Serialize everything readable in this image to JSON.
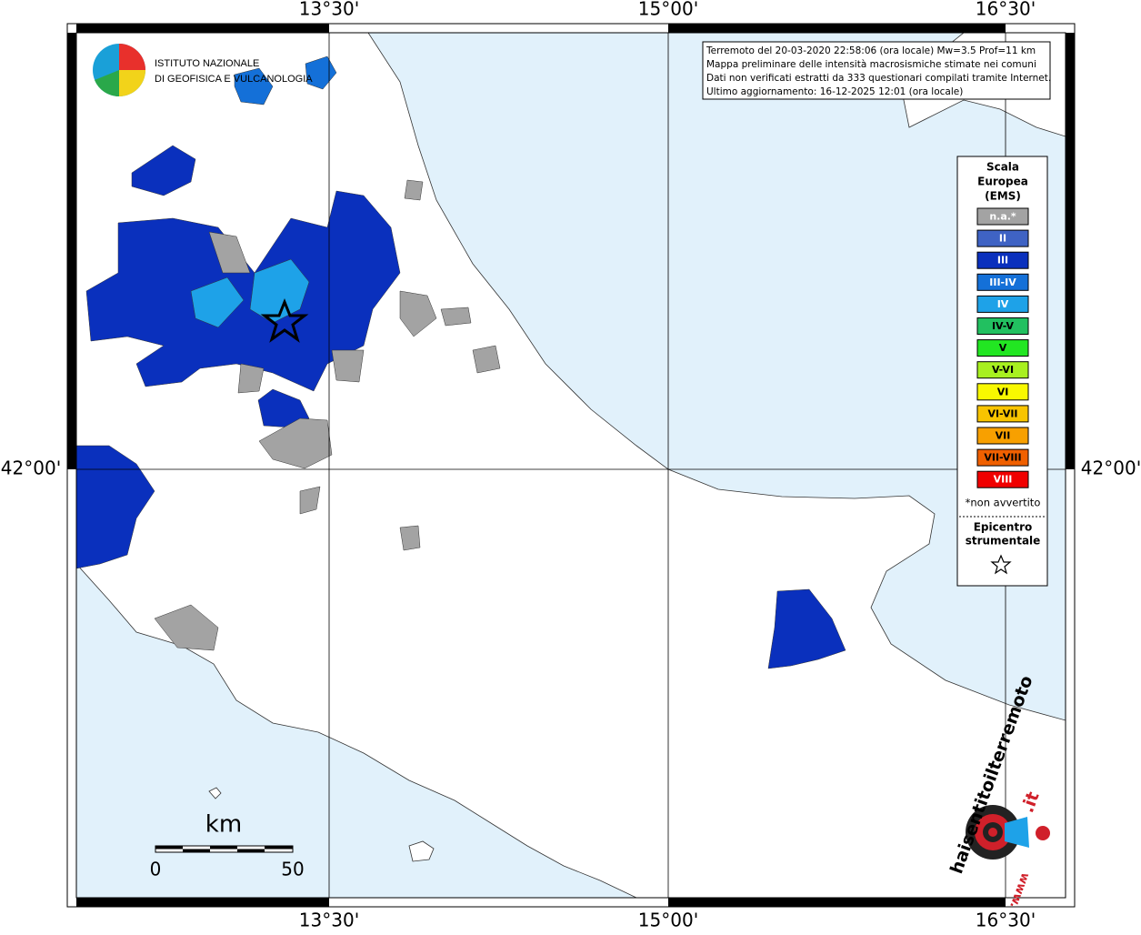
{
  "header": {
    "ingv_line1": "ISTITUTO NAZIONALE",
    "ingv_line2": "DI GEOFISICA E VULCANOLOGIA"
  },
  "info": {
    "lines": [
      "Terremoto del 20-03-2020 22:58:06 (ora locale) Mw=3.5 Prof=11 km",
      "Mappa preliminare delle intensità macrosismiche stimate nei comuni",
      "Dati non verificati estratti da 333 questionari compilati tramite Internet.",
      "Ultimo aggiornamento: 16-12-2025 12:01 (ora locale)"
    ]
  },
  "graticule": {
    "longitudes": [
      "13°30'",
      "15°00'",
      "16°30'"
    ],
    "latitudes": [
      "42°00'"
    ]
  },
  "legend": {
    "title": [
      "Scala",
      "Europea",
      "(EMS)"
    ],
    "items": [
      {
        "label": "n.a.*",
        "color": "#a3a3a3",
        "text_color": "#ffffff"
      },
      {
        "label": "II",
        "color": "#3f63c4",
        "text_color": "#ffffff"
      },
      {
        "label": "III",
        "color": "#0a30bd",
        "text_color": "#ffffff"
      },
      {
        "label": "III-IV",
        "color": "#1470d8",
        "text_color": "#ffffff"
      },
      {
        "label": "IV",
        "color": "#1ea2e8",
        "text_color": "#ffffff"
      },
      {
        "label": "IV-V",
        "color": "#22c060",
        "text_color": "#000000"
      },
      {
        "label": "V",
        "color": "#22e622",
        "text_color": "#000000"
      },
      {
        "label": "V-VI",
        "color": "#a8f020",
        "text_color": "#000000"
      },
      {
        "label": "VI",
        "color": "#f8f800",
        "text_color": "#000000"
      },
      {
        "label": "VI-VII",
        "color": "#f8c400",
        "text_color": "#000000"
      },
      {
        "label": "VII",
        "color": "#f8a000",
        "text_color": "#000000"
      },
      {
        "label": "VII-VIII",
        "color": "#f06000",
        "text_color": "#000000"
      },
      {
        "label": "VIII",
        "color": "#f00000",
        "text_color": "#ffffff"
      }
    ],
    "note": "*non avvertito",
    "epicenter": [
      "Epicentro",
      "strumentale"
    ]
  },
  "scale_bar": {
    "unit": "km",
    "start": "0",
    "end": "50"
  },
  "footer": {
    "logo_text": "haisentitoilterremoto",
    "logo_suffix": ".it",
    "logo_www": "www."
  }
}
